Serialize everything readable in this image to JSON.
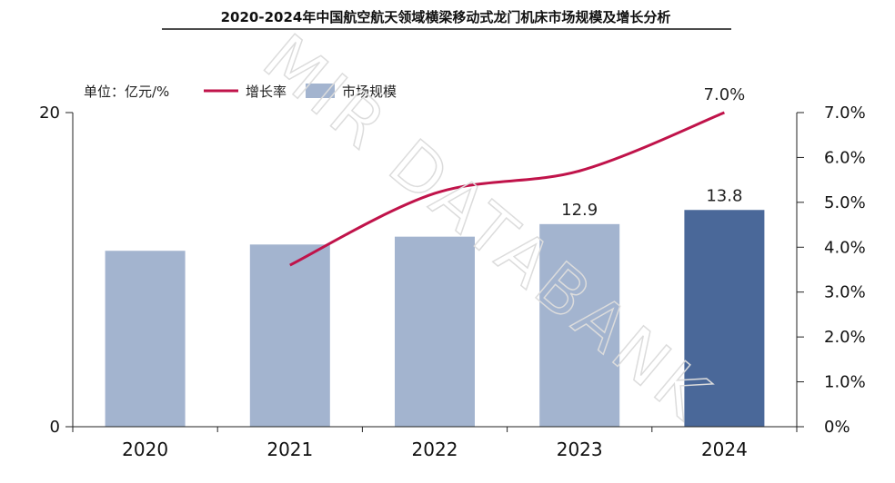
{
  "chart_data": {
    "type": "bar+line",
    "title": "2020-2024年中国航空航天领域横梁移动式龙门机床市场规模及增长分析",
    "unit_label": "单位：亿元/%",
    "categories": [
      "2020",
      "2021",
      "2022",
      "2023",
      "2024"
    ],
    "series": [
      {
        "name": "市场规模",
        "type": "bar",
        "axis": "left",
        "values": [
          11.2,
          11.6,
          12.1,
          12.9,
          13.8
        ],
        "data_labels": [
          null,
          null,
          null,
          "12.9",
          "13.8"
        ],
        "color": "#a3b4cf",
        "highlight_color": "#4a6899",
        "highlight_index": 4
      },
      {
        "name": "增长率",
        "type": "line",
        "axis": "right",
        "values": [
          null,
          3.6,
          5.2,
          5.7,
          7.0
        ],
        "data_labels": [
          null,
          null,
          null,
          null,
          "7.0%"
        ],
        "color": "#c0134a"
      }
    ],
    "y_left": {
      "ylim": [
        0,
        20
      ],
      "ticks": [
        "0",
        "20"
      ],
      "tick_values": [
        0,
        20
      ]
    },
    "y_right": {
      "ylim": [
        0,
        7
      ],
      "ticks": [
        "0%",
        "1.0%",
        "2.0%",
        "3.0%",
        "4.0%",
        "5.0%",
        "6.0%",
        "7.0%"
      ],
      "tick_values": [
        0,
        1,
        2,
        3,
        4,
        5,
        6,
        7
      ]
    },
    "legend_position": "top-left",
    "grid": false,
    "watermark": "MIR DATABANK"
  }
}
